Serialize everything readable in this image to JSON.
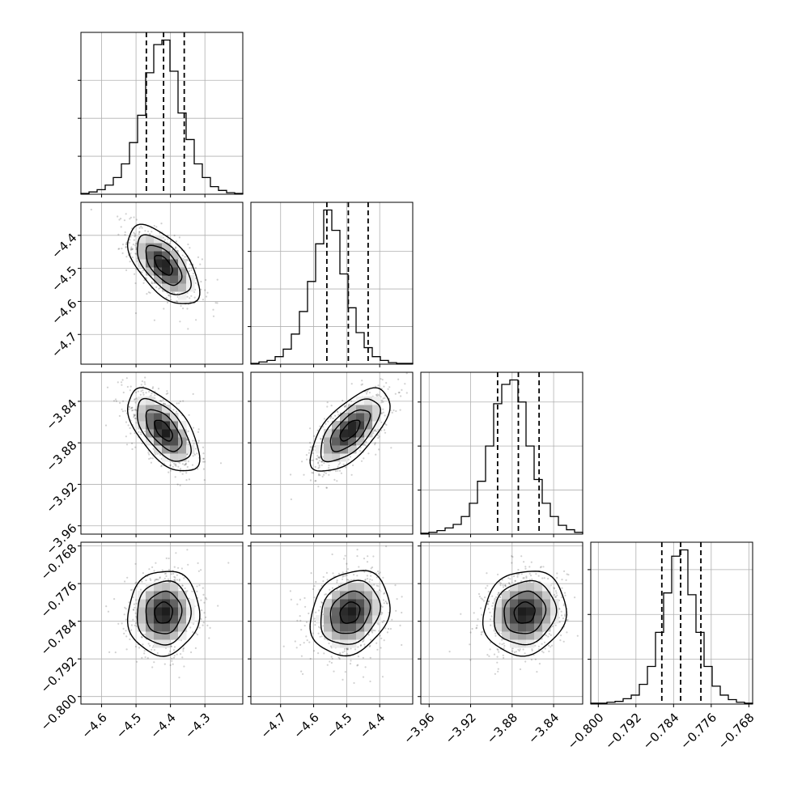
{
  "chart_data": {
    "type": "corner",
    "background_color": "#ffffff",
    "line_color": "#000000",
    "grid": true,
    "grid_color": "#b0b0b0",
    "params": [
      {
        "axis_range": [
          -4.66,
          -4.19
        ],
        "ticks": [
          -4.6,
          -4.5,
          -4.4,
          -4.3
        ],
        "tick_labels": [
          "−4.6",
          "−4.5",
          "−4.4",
          "−4.3"
        ],
        "quantiles": [
          -4.47,
          -4.42,
          -4.36
        ],
        "hist_counts": [
          1,
          3,
          6,
          12,
          22,
          40,
          68,
          104,
          160,
          197,
          203,
          162,
          107,
          72,
          40,
          22,
          10,
          5,
          2,
          1
        ]
      },
      {
        "axis_range": [
          -4.79,
          -4.3
        ],
        "ticks": [
          -4.7,
          -4.6,
          -4.5,
          -4.4
        ],
        "tick_labels": [
          "−4.7",
          "−4.6",
          "−4.5",
          "−4.4"
        ],
        "quantiles": [
          -4.56,
          -4.495,
          -4.435
        ],
        "hist_counts": [
          1,
          3,
          5,
          10,
          20,
          40,
          70,
          110,
          160,
          205,
          178,
          120,
          75,
          42,
          22,
          10,
          5,
          2,
          1,
          1
        ]
      },
      {
        "axis_range": [
          -3.968,
          -3.812
        ],
        "ticks": [
          -3.96,
          -3.92,
          -3.88,
          -3.84
        ],
        "tick_labels": [
          "−3.96",
          "−3.92",
          "−3.88",
          "−3.84"
        ],
        "quantiles": [
          -3.894,
          -3.874,
          -3.854
        ],
        "hist_counts": [
          1,
          2,
          4,
          7,
          11,
          20,
          35,
          60,
          100,
          148,
          170,
          175,
          150,
          100,
          62,
          35,
          20,
          10,
          5,
          2
        ]
      },
      {
        "axis_range": [
          -0.8016,
          -0.7672
        ],
        "ticks": [
          -0.8,
          -0.792,
          -0.784,
          -0.776,
          -0.768
        ],
        "tick_labels": [
          "−0.800",
          "−0.792",
          "−0.784",
          "−0.776",
          "−0.768"
        ],
        "quantiles": [
          -0.7865,
          -0.7825,
          -0.7782
        ],
        "hist_counts": [
          1,
          1,
          2,
          3,
          6,
          10,
          22,
          42,
          80,
          124,
          165,
          172,
          122,
          80,
          42,
          20,
          10,
          5,
          2,
          1
        ]
      }
    ],
    "pairs": [
      {
        "row": 1,
        "col": 0,
        "center": [
          -4.42,
          -4.49
        ],
        "sx": 0.052,
        "sy": 0.06,
        "rho": -0.6
      },
      {
        "row": 2,
        "col": 0,
        "center": [
          -4.42,
          -3.868
        ],
        "sx": 0.052,
        "sy": 0.02,
        "rho": -0.6
      },
      {
        "row": 2,
        "col": 1,
        "center": [
          -4.49,
          -3.868
        ],
        "sx": 0.06,
        "sy": 0.02,
        "rho": 0.65
      },
      {
        "row": 3,
        "col": 0,
        "center": [
          -4.42,
          -0.7822
        ],
        "sx": 0.052,
        "sy": 0.0045,
        "rho": 0.05
      },
      {
        "row": 3,
        "col": 1,
        "center": [
          -4.49,
          -0.7822
        ],
        "sx": 0.06,
        "sy": 0.0045,
        "rho": 0.2
      },
      {
        "row": 3,
        "col": 2,
        "center": [
          -3.868,
          -0.7822
        ],
        "sx": 0.02,
        "sy": 0.0045,
        "rho": 0.1
      }
    ]
  }
}
